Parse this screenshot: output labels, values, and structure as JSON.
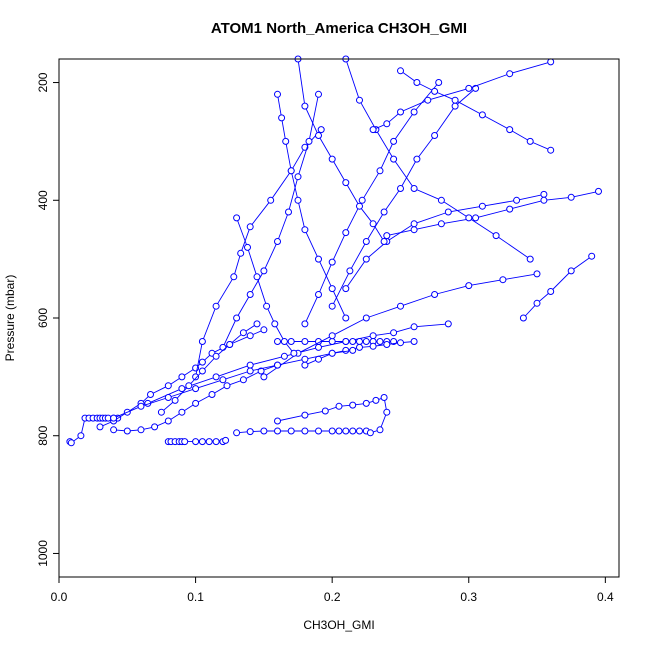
{
  "chart_data": {
    "type": "line",
    "title": "ATOM1 North_America CH3OH_GMI",
    "xlabel": "CH3OH_GMI",
    "ylabel": "Pressure (mbar)",
    "xlim": [
      0.0,
      0.41
    ],
    "ylim": [
      1040,
      160
    ],
    "y_reversed": true,
    "grid": false,
    "legend": "none",
    "x_ticks": [
      0.0,
      0.1,
      0.2,
      0.3,
      0.4
    ],
    "x_tick_labels": [
      "0.0",
      "0.1",
      "0.2",
      "0.3",
      "0.4"
    ],
    "y_ticks": [
      200,
      400,
      600,
      800,
      1000
    ],
    "y_tick_labels": [
      "200",
      "400",
      "600",
      "800",
      "1000"
    ],
    "color": "#0000ff",
    "marker": "open-circle",
    "series": [
      {
        "x": [
          0.008,
          0.009,
          0.016,
          0.019,
          0.022,
          0.025,
          0.028,
          0.03,
          0.032,
          0.034,
          0.036,
          0.04,
          0.043
        ],
        "y": [
          810,
          812,
          800,
          770,
          770,
          770,
          770,
          770,
          770,
          770,
          770,
          770,
          770
        ]
      },
      {
        "x": [
          0.03,
          0.04,
          0.05,
          0.06,
          0.067,
          0.08,
          0.09,
          0.1,
          0.105,
          0.112,
          0.125,
          0.14,
          0.15
        ],
        "y": [
          785,
          775,
          760,
          745,
          730,
          715,
          700,
          685,
          675,
          660,
          645,
          630,
          620
        ]
      },
      {
        "x": [
          0.04,
          0.05,
          0.06,
          0.07,
          0.08,
          0.09,
          0.1,
          0.112,
          0.123,
          0.135,
          0.148,
          0.16
        ],
        "y": [
          790,
          792,
          790,
          785,
          775,
          760,
          745,
          730,
          715,
          705,
          690,
          680
        ]
      },
      {
        "x": [
          0.08,
          0.082,
          0.085,
          0.088,
          0.09,
          0.092,
          0.1,
          0.105,
          0.11,
          0.115,
          0.12,
          0.122
        ],
        "y": [
          810,
          810,
          810,
          810,
          810,
          810,
          810,
          810,
          810,
          810,
          810,
          808
        ]
      },
      {
        "x": [
          0.13,
          0.14,
          0.15,
          0.16,
          0.17,
          0.18,
          0.19,
          0.2,
          0.205,
          0.21,
          0.215,
          0.22,
          0.225
        ],
        "y": [
          795,
          793,
          792,
          792,
          792,
          792,
          792,
          792,
          792,
          792,
          792,
          792,
          792
        ]
      },
      {
        "x": [
          0.16,
          0.18,
          0.195,
          0.205,
          0.215,
          0.225,
          0.232,
          0.238,
          0.24,
          0.235,
          0.228
        ],
        "y": [
          775,
          765,
          758,
          750,
          748,
          745,
          740,
          735,
          760,
          790,
          795
        ]
      },
      {
        "x": [
          0.04,
          0.065,
          0.09,
          0.115,
          0.14,
          0.165,
          0.19,
          0.21,
          0.23,
          0.245,
          0.26,
          0.285
        ],
        "y": [
          770,
          745,
          720,
          700,
          680,
          665,
          650,
          640,
          630,
          625,
          615,
          610
        ]
      },
      {
        "x": [
          0.16,
          0.17,
          0.18,
          0.19,
          0.2,
          0.21,
          0.215,
          0.22,
          0.225,
          0.23,
          0.235,
          0.24,
          0.245
        ],
        "y": [
          640,
          640,
          640,
          640,
          640,
          640,
          640,
          640,
          640,
          640,
          640,
          640,
          640
        ]
      },
      {
        "x": [
          0.1,
          0.105,
          0.115,
          0.128,
          0.133,
          0.14,
          0.155,
          0.17,
          0.18,
          0.192
        ],
        "y": [
          700,
          640,
          580,
          530,
          490,
          445,
          400,
          350,
          310,
          280
        ]
      },
      {
        "x": [
          0.12,
          0.13,
          0.14,
          0.15,
          0.16,
          0.168,
          0.175,
          0.183,
          0.19
        ],
        "y": [
          650,
          600,
          560,
          520,
          470,
          420,
          360,
          300,
          220
        ]
      },
      {
        "x": [
          0.18,
          0.19,
          0.2,
          0.21,
          0.222,
          0.235,
          0.245,
          0.26,
          0.278
        ],
        "y": [
          610,
          560,
          505,
          455,
          400,
          350,
          300,
          250,
          200
        ]
      },
      {
        "x": [
          0.2,
          0.213,
          0.225,
          0.238,
          0.25,
          0.262,
          0.275,
          0.29,
          0.305
        ],
        "y": [
          580,
          520,
          470,
          420,
          380,
          330,
          290,
          240,
          210
        ]
      },
      {
        "x": [
          0.21,
          0.225,
          0.24,
          0.26,
          0.285,
          0.31,
          0.335,
          0.355
        ],
        "y": [
          550,
          500,
          470,
          440,
          420,
          410,
          400,
          390
        ]
      },
      {
        "x": [
          0.24,
          0.26,
          0.28,
          0.305,
          0.33,
          0.355,
          0.375,
          0.395
        ],
        "y": [
          460,
          450,
          440,
          430,
          415,
          400,
          395,
          385
        ]
      },
      {
        "x": [
          0.15,
          0.175,
          0.2,
          0.225,
          0.25,
          0.275,
          0.3,
          0.325,
          0.35
        ],
        "y": [
          700,
          660,
          630,
          600,
          580,
          560,
          545,
          535,
          525
        ]
      },
      {
        "x": [
          0.34,
          0.35,
          0.36,
          0.375,
          0.39
        ],
        "y": [
          600,
          575,
          555,
          520,
          495
        ]
      },
      {
        "x": [
          0.16,
          0.163,
          0.166,
          0.17,
          0.175,
          0.18,
          0.19,
          0.2,
          0.21
        ],
        "y": [
          220,
          260,
          300,
          350,
          400,
          450,
          500,
          550,
          600
        ]
      },
      {
        "x": [
          0.175,
          0.18,
          0.19,
          0.2,
          0.21,
          0.22,
          0.23,
          0.238
        ],
        "y": [
          160,
          240,
          290,
          330,
          370,
          410,
          440,
          470
        ]
      },
      {
        "x": [
          0.21,
          0.22,
          0.232,
          0.245,
          0.26,
          0.28,
          0.3,
          0.32,
          0.345
        ],
        "y": [
          160,
          230,
          280,
          330,
          380,
          400,
          430,
          460,
          500
        ]
      },
      {
        "x": [
          0.25,
          0.262,
          0.275,
          0.29,
          0.31,
          0.33,
          0.345,
          0.36
        ],
        "y": [
          180,
          200,
          215,
          230,
          255,
          280,
          300,
          315
        ]
      },
      {
        "x": [
          0.23,
          0.24,
          0.25,
          0.27,
          0.3,
          0.33,
          0.36
        ],
        "y": [
          280,
          270,
          250,
          230,
          210,
          185,
          165
        ]
      },
      {
        "x": [
          0.13,
          0.138,
          0.145,
          0.152,
          0.158,
          0.165,
          0.172
        ],
        "y": [
          430,
          480,
          530,
          580,
          610,
          640,
          660
        ]
      },
      {
        "x": [
          0.075,
          0.085,
          0.095,
          0.105,
          0.115,
          0.125,
          0.135,
          0.145
        ],
        "y": [
          760,
          740,
          715,
          690,
          665,
          645,
          625,
          610
        ]
      },
      {
        "x": [
          0.18,
          0.19,
          0.2,
          0.21,
          0.22,
          0.23,
          0.24,
          0.25,
          0.26
        ],
        "y": [
          680,
          670,
          660,
          655,
          650,
          648,
          645,
          642,
          640
        ]
      },
      {
        "x": [
          0.06,
          0.08,
          0.1,
          0.12,
          0.14,
          0.16,
          0.18,
          0.2,
          0.215
        ],
        "y": [
          750,
          735,
          720,
          705,
          690,
          680,
          670,
          660,
          655
        ]
      }
    ]
  }
}
